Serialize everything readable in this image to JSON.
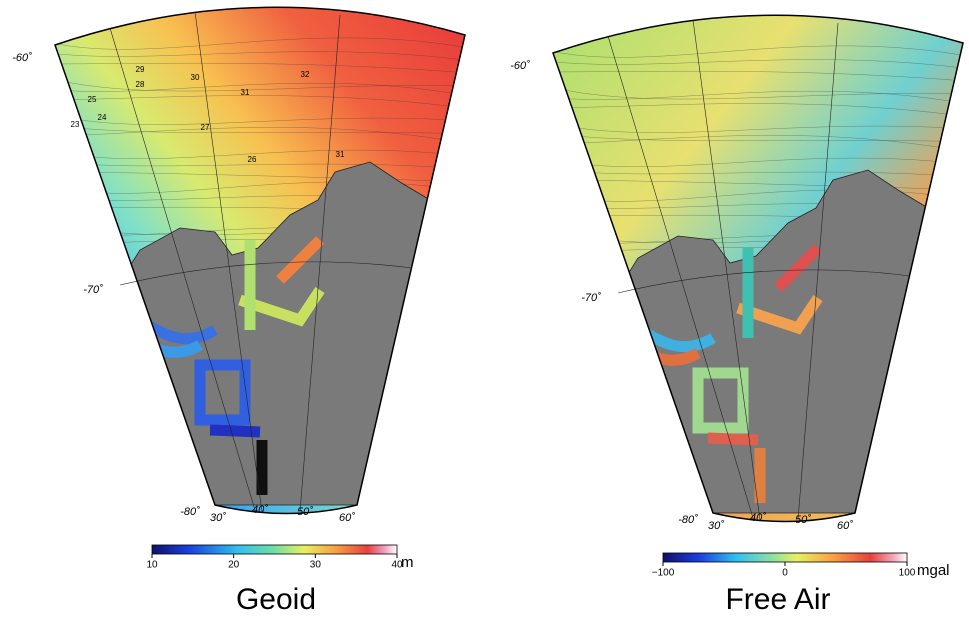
{
  "maps": [
    {
      "title": "Geoid",
      "unit": "m",
      "colorbar_ticks": [
        "10",
        "20",
        "30",
        "40"
      ],
      "lat_labels": [
        "-60˚",
        "-70˚",
        "-80˚"
      ],
      "lon_labels": [
        "30˚",
        "40˚",
        "50˚",
        "60˚"
      ],
      "contour_labels": [
        "32",
        "31",
        "30",
        "29",
        "28",
        "25",
        "24",
        "23",
        "27",
        "26",
        "31"
      ]
    },
    {
      "title": "Free Air",
      "unit": "mgal",
      "colorbar_ticks": [
        "−100",
        "0",
        "100"
      ],
      "lat_labels": [
        "-60˚",
        "-70˚",
        "-80˚"
      ],
      "lon_labels": [
        "30˚",
        "40˚",
        "50˚",
        "60˚"
      ],
      "contour_labels": []
    }
  ]
}
